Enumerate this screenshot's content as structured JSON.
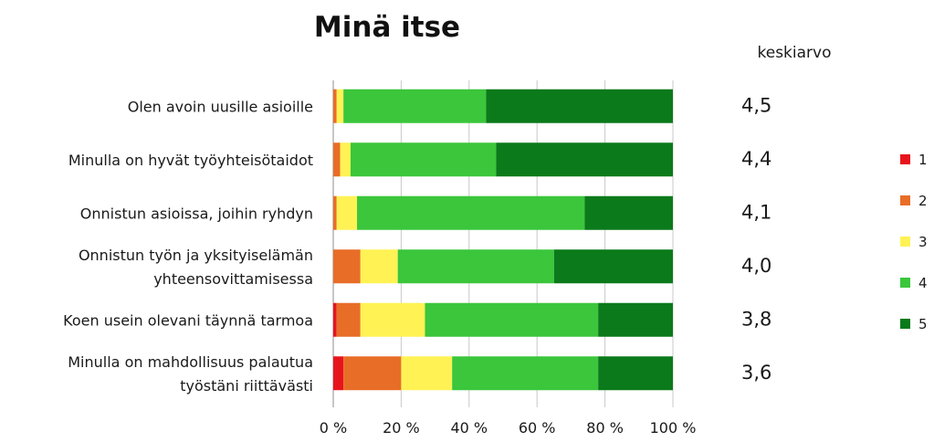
{
  "chart_data": {
    "type": "bar",
    "orientation": "horizontal",
    "stacked": "percent",
    "title": "Minä itse",
    "average_header": "keskiarvo",
    "categories": [
      [
        "Olen avoin uusille asioille"
      ],
      [
        "Minulla on hyvät työyhteisötaidot"
      ],
      [
        "Onnistun asioissa, joihin ryhdyn"
      ],
      [
        "Onnistun työn ja yksityiselämän",
        "yhteensovittamisessa"
      ],
      [
        "Koen usein olevani täynnä tarmoa"
      ],
      [
        "Minulla on mahdollisuus palautua",
        "työstäni riittävästi"
      ]
    ],
    "averages": [
      "4,5",
      "4,4",
      "4,1",
      "4,0",
      "3,8",
      "3,6"
    ],
    "series": [
      {
        "name": "1",
        "color": "#e8141c",
        "values": [
          0,
          0,
          0,
          0,
          1,
          3
        ]
      },
      {
        "name": "2",
        "color": "#e86d27",
        "values": [
          1,
          2,
          1,
          8,
          7,
          17
        ]
      },
      {
        "name": "3",
        "color": "#fff254",
        "values": [
          2,
          3,
          6,
          11,
          19,
          15
        ]
      },
      {
        "name": "4",
        "color": "#3bc63b",
        "values": [
          42,
          42,
          67,
          46,
          51,
          43
        ]
      },
      {
        "name": "5",
        "color": "#0b7a1a",
        "values": [
          55,
          51,
          26,
          35,
          22,
          22
        ]
      }
    ],
    "x_ticks": [
      "0 %",
      "20 %",
      "40 %",
      "60 %",
      "80 %",
      "100 %"
    ],
    "xlim": [
      0,
      100
    ],
    "grid": true,
    "legend_position": "right"
  }
}
